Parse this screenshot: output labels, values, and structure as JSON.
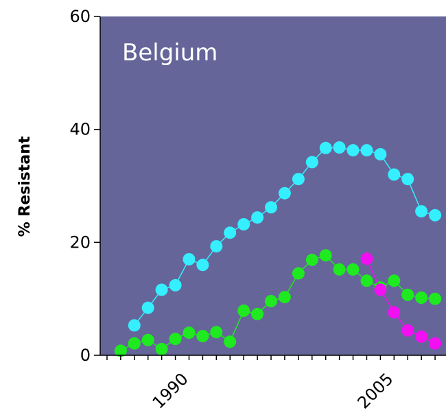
{
  "chart_data": {
    "type": "line",
    "title": "Belgium",
    "xlabel": "",
    "ylabel": "% Resistant",
    "xlim": [
      1983.5,
      2008.8
    ],
    "ylim": [
      0,
      60
    ],
    "yticks": [
      0,
      20,
      40,
      60
    ],
    "xtick_labels": [
      {
        "x": 1990,
        "label": "1990"
      },
      {
        "x": 2005,
        "label": "2005"
      }
    ],
    "minor_xticks_step": 1,
    "grid": false,
    "plot_background": "#65659a",
    "series": [
      {
        "color": "#35eefe",
        "x": [
          1986,
          1987,
          1988,
          1989,
          1990,
          1991,
          1992,
          1993,
          1994,
          1995,
          1996,
          1997,
          1998,
          1999,
          2000,
          2001,
          2002,
          2003,
          2004,
          2005,
          2006,
          2007,
          2008
        ],
        "y": [
          5.3,
          8.4,
          11.6,
          12.4,
          17.0,
          16.0,
          19.3,
          21.7,
          23.2,
          24.4,
          26.2,
          28.7,
          31.2,
          34.2,
          36.7,
          36.8,
          36.3,
          36.3,
          35.6,
          32.0,
          31.2,
          25.5,
          24.8
        ]
      },
      {
        "color": "#1fe91f",
        "x": [
          1985,
          1986,
          1987,
          1988,
          1989,
          1990,
          1991,
          1992,
          1993,
          1994,
          1995,
          1996,
          1997,
          1998,
          1999,
          2000,
          2001,
          2002,
          2003,
          2004,
          2005,
          2006,
          2007,
          2008
        ],
        "y": [
          0.8,
          2.1,
          2.7,
          1.1,
          2.9,
          4.0,
          3.4,
          4.1,
          2.4,
          7.9,
          7.3,
          9.6,
          10.3,
          14.5,
          16.9,
          17.7,
          15.2,
          15.2,
          13.2,
          12.0,
          13.2,
          10.7,
          10.2,
          10.0
        ]
      },
      {
        "color": "#f20ff2",
        "x": [
          2003,
          2004,
          2005,
          2006,
          2007,
          2008
        ],
        "y": [
          17.1,
          11.6,
          7.6,
          4.4,
          3.3,
          2.1
        ]
      }
    ]
  }
}
